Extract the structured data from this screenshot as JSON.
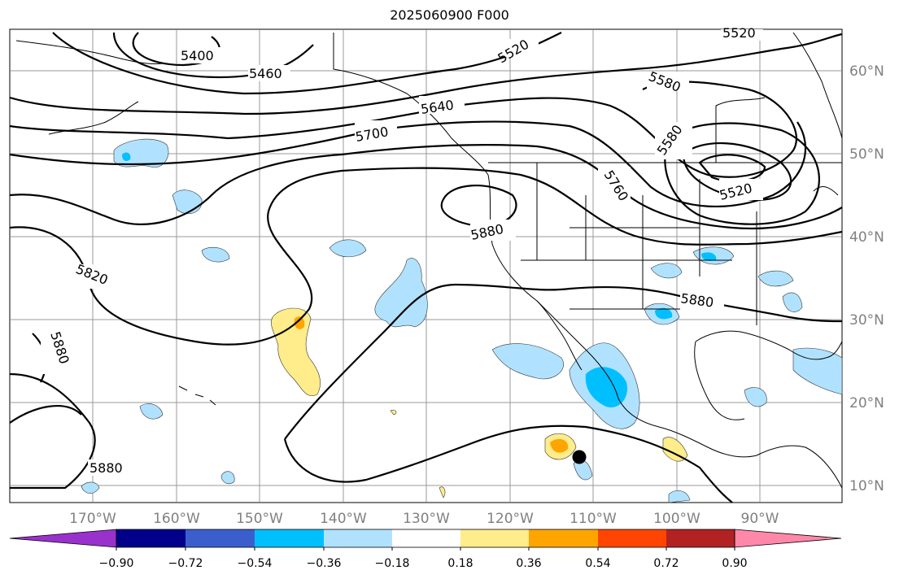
{
  "title": "2025060900 F000",
  "latitude_labels": [
    "60°N",
    "50°N",
    "40°N",
    "30°N",
    "20°N",
    "10°N"
  ],
  "longitude_labels": [
    "170°W",
    "160°W",
    "150°W",
    "140°W",
    "130°W",
    "120°W",
    "110°W",
    "100°W",
    "90°W"
  ],
  "contour_labels": [
    "5400",
    "5460",
    "5520",
    "5520",
    "5580",
    "5580",
    "5640",
    "5700",
    "5760",
    "5820",
    "5880",
    "5880",
    "5880",
    "5880",
    "5520"
  ],
  "colorbar": {
    "ticks": [
      "−0.90",
      "−0.72",
      "−0.54",
      "−0.36",
      "−0.18",
      "0.18",
      "0.36",
      "0.54",
      "0.72",
      "0.90"
    ],
    "colors": [
      "#9932cc",
      "#00008b",
      "#3a5fcd",
      "#00bfff",
      "#b0e2ff",
      "#ffffff",
      "#ffec8b",
      "#ffa500",
      "#ff4500",
      "#b22222",
      "#ff88aa"
    ]
  },
  "marker": "black-dot"
}
